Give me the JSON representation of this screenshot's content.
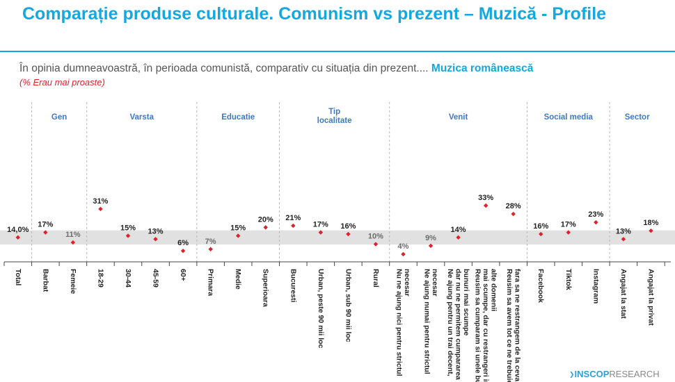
{
  "header": {
    "title": "Comparație produse culturale. Comunism vs prezent – Muzică - Profile",
    "question": "În opinia dumneavoastră, în perioada comunistă, comparativ cu situația din prezent....",
    "question_highlight": "Muzica românească",
    "note": "(% Erau mai proaste)"
  },
  "brand": {
    "name_bold": "INSCOP",
    "name_light": "RESEARCH"
  },
  "colors": {
    "accent": "#12a8e0",
    "marker": "#e0202a",
    "band": "#e1e1e1",
    "group_label": "#3f78c4"
  },
  "chart_data": {
    "type": "scatter",
    "title": "Comparație produse culturale. Comunism vs prezent – Muzică - Profile",
    "ylabel": "% Erau mai proaste",
    "ylim": [
      0,
      40
    ],
    "reference_band": [
      11,
      17
    ],
    "categories": [
      "Total",
      "Barbat",
      "Femeie",
      "18-29",
      "30-44",
      "45-59",
      "60+",
      "Primara",
      "Medie",
      "Superioara",
      "Bucuresti",
      "Urban, peste 90 mii loc",
      "Urban, sub 90 mii loc",
      "Rural",
      "Nu ne ajung nici pentru strictul necesar",
      "Ne ajung numai pentru strictul necesar",
      "Ne ajung pentru un trai decent, dar nu ne permitem cumpararea unor bunuri mai scumpe",
      "Reusim sa cumparam si unele bunuri mai scumpe, dar cu restrangeri in alte domenii",
      "Reusim sa avem tot ce ne trebuie, fara sa ne restrangem de la ceva",
      "Facebook",
      "Tiktok",
      "Instagram",
      "Angajat la stat",
      "Angajat la privat"
    ],
    "values": [
      14.0,
      17,
      11,
      31,
      15,
      13,
      6,
      7,
      15,
      20,
      21,
      17,
      16,
      10,
      4,
      9,
      14,
      33,
      28,
      16,
      17,
      23,
      13,
      18
    ],
    "value_labels": [
      "14,0%",
      "17%",
      "11%",
      "31%",
      "15%",
      "13%",
      "6%",
      "7%",
      "15%",
      "20%",
      "21%",
      "17%",
      "16%",
      "10%",
      "4%",
      "9%",
      "14%",
      "33%",
      "28%",
      "16%",
      "17%",
      "23%",
      "13%",
      "18%"
    ],
    "groups": [
      {
        "name": "Gen",
        "start": 1,
        "end": 2
      },
      {
        "name": "Varsta",
        "start": 3,
        "end": 6
      },
      {
        "name": "Educatie",
        "start": 7,
        "end": 9
      },
      {
        "name": "Tip localitate",
        "start": 10,
        "end": 13
      },
      {
        "name": "Venit",
        "start": 14,
        "end": 18
      },
      {
        "name": "Social media",
        "start": 19,
        "end": 21
      },
      {
        "name": "Sector",
        "start": 22,
        "end": 23
      }
    ]
  }
}
